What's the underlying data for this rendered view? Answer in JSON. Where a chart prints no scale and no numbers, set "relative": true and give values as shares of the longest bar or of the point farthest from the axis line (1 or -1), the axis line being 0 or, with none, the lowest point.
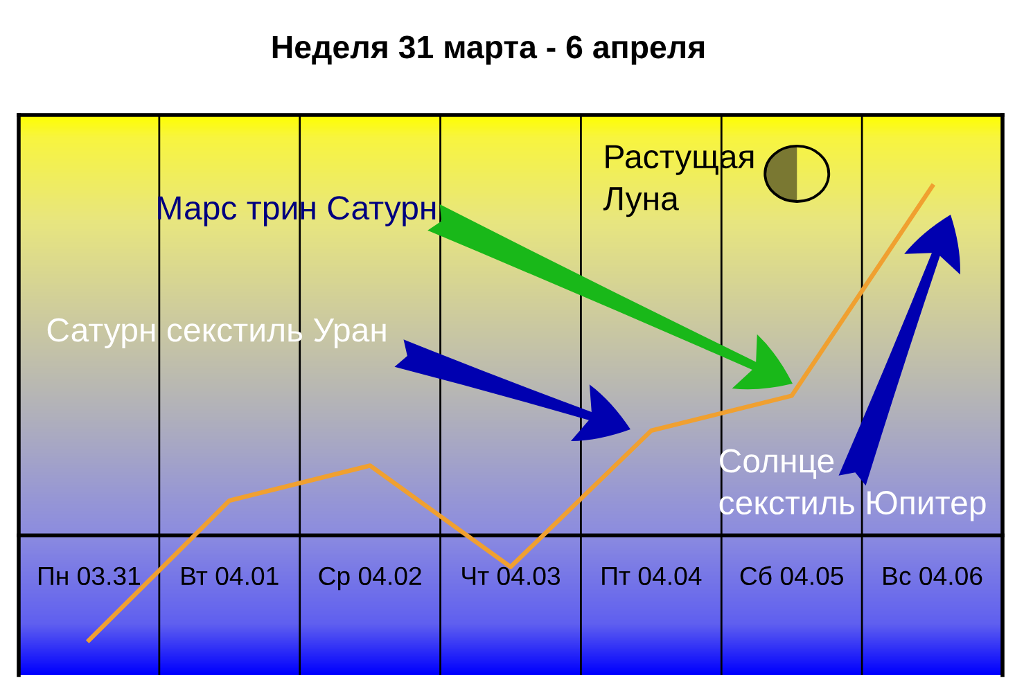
{
  "chart_data": {
    "type": "line",
    "title": "Неделя 31 марта - 6 апреля",
    "categories": [
      "Пн 03.31",
      "Вт 04.01",
      "Ср 04.02",
      "Чт 04.03",
      "Пт 04.04",
      "Сб 04.05",
      "Вс 04.06"
    ],
    "series": [
      {
        "color": "#f0a030",
        "values": [
          -0.3,
          0.1,
          0.2,
          -0.09,
          0.3,
          0.4,
          1
        ]
      }
    ],
    "relative": true,
    "grid": "x",
    "annotations": [
      "Растущая\nЛуна",
      "Марс трин Сатурн",
      "Сатурн секстиль Уран",
      "Солнце\nсекстиль Юпитер"
    ]
  }
}
